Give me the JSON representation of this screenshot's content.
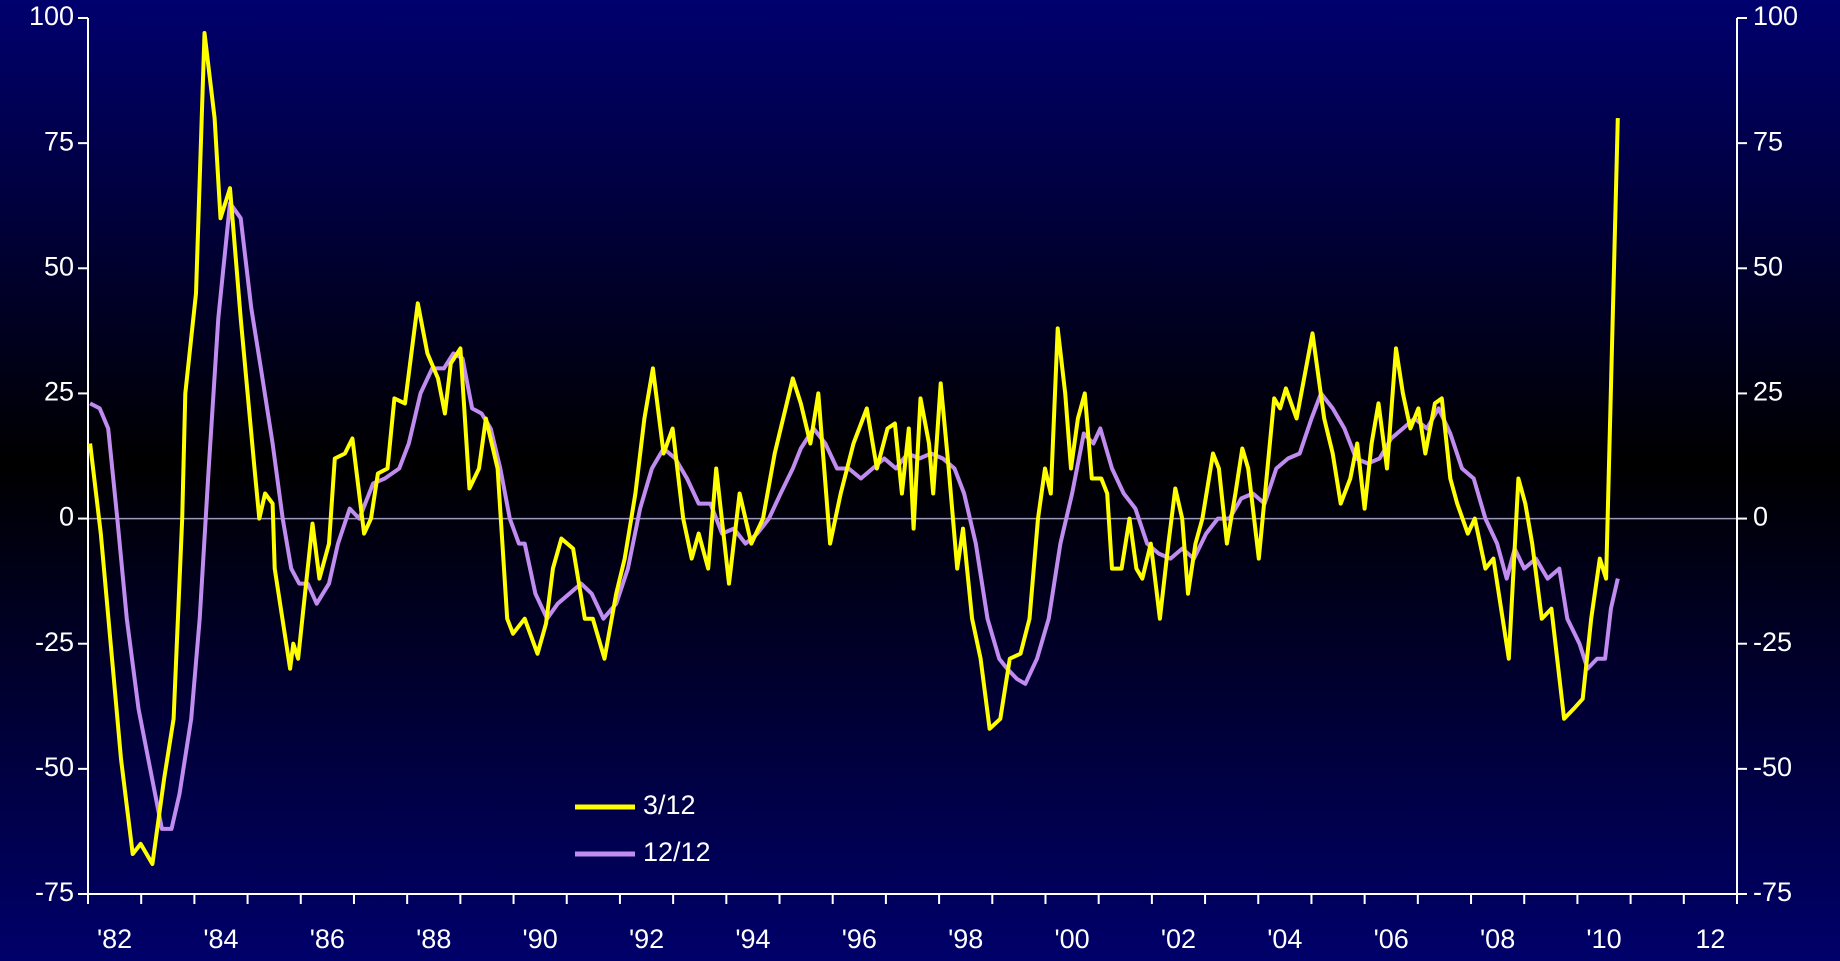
{
  "chart_data": {
    "type": "line",
    "xlim": [
      1982,
      2013
    ],
    "xticks": [
      {
        "value": 1982.5,
        "label": "'82"
      },
      {
        "value": 1984.5,
        "label": "'84"
      },
      {
        "value": 1986.5,
        "label": "'86"
      },
      {
        "value": 1988.5,
        "label": "'88"
      },
      {
        "value": 1990.5,
        "label": "'90"
      },
      {
        "value": 1992.5,
        "label": "'92"
      },
      {
        "value": 1994.5,
        "label": "'94"
      },
      {
        "value": 1996.5,
        "label": "'96"
      },
      {
        "value": 1998.5,
        "label": "'98"
      },
      {
        "value": 2000.5,
        "label": "'00"
      },
      {
        "value": 2002.5,
        "label": "'02"
      },
      {
        "value": 2004.5,
        "label": "'04"
      },
      {
        "value": 2006.5,
        "label": "'06"
      },
      {
        "value": 2008.5,
        "label": "'08"
      },
      {
        "value": 2010.5,
        "label": "'10"
      },
      {
        "value": 2012.5,
        "label": "12"
      }
    ],
    "xtick_marks": [
      1982,
      1983,
      1984,
      1985,
      1986,
      1987,
      1988,
      1989,
      1990,
      1991,
      1992,
      1993,
      1994,
      1995,
      1996,
      1997,
      1998,
      1999,
      2000,
      2001,
      2002,
      2003,
      2004,
      2005,
      2006,
      2007,
      2008,
      2009,
      2010,
      2011,
      2012,
      2013
    ],
    "ylim": [
      -75,
      100
    ],
    "yticks": [
      -75,
      -50,
      -25,
      0,
      25,
      50,
      75,
      100
    ],
    "y2lim": [
      -75,
      100
    ],
    "y2ticks": [
      -75,
      -50,
      -25,
      0,
      25,
      50,
      75,
      100
    ],
    "zero_line": true,
    "legend": "lower center",
    "series": [
      {
        "name": "3/12",
        "color": "#ffff00",
        "x": [
          1982.04,
          1982.24,
          1982.62,
          1982.84,
          1982.99,
          1983.21,
          1983.43,
          1983.61,
          1983.77,
          1983.83,
          1984.03,
          1984.19,
          1984.38,
          1984.49,
          1984.67,
          1984.87,
          1985.13,
          1985.22,
          1985.33,
          1985.47,
          1985.51,
          1985.8,
          1985.86,
          1985.95,
          1986.08,
          1986.22,
          1986.35,
          1986.53,
          1986.64,
          1986.83,
          1986.97,
          1987.19,
          1987.32,
          1987.45,
          1987.63,
          1987.76,
          1987.96,
          1988.2,
          1988.38,
          1988.58,
          1988.71,
          1988.82,
          1989.0,
          1989.17,
          1989.35,
          1989.48,
          1989.7,
          1989.88,
          1989.99,
          1990.21,
          1990.45,
          1990.61,
          1990.74,
          1990.9,
          1991.12,
          1991.34,
          1991.49,
          1991.71,
          1991.93,
          1992.09,
          1992.29,
          1992.46,
          1992.62,
          1992.82,
          1992.99,
          1993.19,
          1993.35,
          1993.48,
          1993.66,
          1993.81,
          1994.05,
          1994.25,
          1994.47,
          1994.69,
          1994.91,
          1995.25,
          1995.4,
          1995.58,
          1995.73,
          1995.95,
          1996.15,
          1996.39,
          1996.64,
          1996.83,
          1997.03,
          1997.17,
          1997.3,
          1997.43,
          1997.52,
          1997.65,
          1997.81,
          1997.89,
          1998.03,
          1998.18,
          1998.34,
          1998.45,
          1998.62,
          1998.78,
          1998.95,
          1999.15,
          1999.33,
          1999.53,
          1999.7,
          1999.86,
          1999.99,
          2000.1,
          2000.23,
          2000.37,
          2000.48,
          2000.61,
          2000.74,
          2000.87,
          2001.05,
          2001.16,
          2001.25,
          2001.43,
          2001.58,
          2001.71,
          2001.82,
          2001.98,
          2002.15,
          2002.31,
          2002.44,
          2002.57,
          2002.68,
          2002.82,
          2002.95,
          2003.15,
          2003.26,
          2003.41,
          2003.57,
          2003.7,
          2003.81,
          2004.01,
          2004.3,
          2004.41,
          2004.52,
          2004.72,
          2005.02,
          2005.24,
          2005.4,
          2005.55,
          2005.73,
          2005.86,
          2006.0,
          2006.13,
          2006.26,
          2006.42,
          2006.59,
          2006.72,
          2006.86,
          2007.01,
          2007.14,
          2007.32,
          2007.45,
          2007.61,
          2007.74,
          2007.94,
          2008.07,
          2008.27,
          2008.42,
          2008.71,
          2008.89,
          2009.02,
          2009.15,
          2009.33,
          2009.51,
          2009.75,
          2009.93,
          2010.1,
          2010.26,
          2010.42,
          2010.54,
          2010.76
        ],
        "values": [
          15,
          -3,
          -48,
          -67,
          -65,
          -69,
          -52,
          -40,
          0,
          25,
          45,
          97,
          80,
          60,
          66,
          40,
          10,
          0,
          5,
          3,
          -10,
          -30,
          -25,
          -28,
          -15,
          -1,
          -12,
          -5,
          12,
          13,
          16,
          -3,
          0,
          9,
          10,
          24,
          23,
          43,
          33,
          28,
          21,
          31,
          34,
          6,
          10,
          20,
          10,
          -20,
          -23,
          -20,
          -27,
          -21,
          -10,
          -4,
          -6,
          -20,
          -20,
          -28,
          -15,
          -8,
          5,
          20,
          30,
          13,
          18,
          0,
          -8,
          -3,
          -10,
          10,
          -13,
          5,
          -5,
          0,
          13,
          28,
          23,
          15,
          25,
          -5,
          5,
          15,
          22,
          10,
          18,
          19,
          5,
          18,
          -2,
          24,
          15,
          5,
          27,
          10,
          -10,
          -2,
          -20,
          -28,
          -42,
          -40,
          -28,
          -27,
          -20,
          0,
          10,
          5,
          38,
          25,
          10,
          20,
          25,
          8,
          8,
          5,
          -10,
          -10,
          0,
          -10,
          -12,
          -5,
          -20,
          -5,
          6,
          0,
          -15,
          -5,
          0,
          13,
          10,
          -5,
          5,
          14,
          10,
          -8,
          24,
          22,
          26,
          20,
          37,
          20,
          13,
          3,
          8,
          15,
          2,
          15,
          23,
          10,
          34,
          25,
          18,
          22,
          13,
          23,
          24,
          8,
          3,
          -3,
          0,
          -10,
          -8,
          -28,
          8,
          3,
          -5,
          -20,
          -18,
          -40,
          -38,
          -36,
          -20,
          -8,
          -12,
          80
        ]
      },
      {
        "name": "12/12",
        "color": "#c08cf0",
        "x": [
          1982.04,
          1982.22,
          1982.38,
          1982.55,
          1982.73,
          1982.95,
          1983.17,
          1983.39,
          1983.57,
          1983.72,
          1983.94,
          1984.1,
          1984.27,
          1984.45,
          1984.67,
          1984.87,
          1985.07,
          1985.25,
          1985.47,
          1985.66,
          1985.82,
          1985.97,
          1986.13,
          1986.3,
          1986.53,
          1986.7,
          1986.92,
          1987.1,
          1987.36,
          1987.58,
          1987.85,
          1988.03,
          1988.25,
          1988.47,
          1988.69,
          1988.87,
          1989.04,
          1989.22,
          1989.4,
          1989.57,
          1989.75,
          1989.93,
          1990.1,
          1990.21,
          1990.41,
          1990.63,
          1990.83,
          1991.05,
          1991.27,
          1991.47,
          1991.69,
          1991.93,
          1992.15,
          1992.38,
          1992.6,
          1992.82,
          1993.04,
          1993.26,
          1993.48,
          1993.7,
          1993.92,
          1994.14,
          1994.36,
          1994.58,
          1994.8,
          1995.02,
          1995.25,
          1995.4,
          1995.64,
          1995.86,
          1996.08,
          1996.3,
          1996.53,
          1996.75,
          1996.97,
          1997.19,
          1997.41,
          1997.63,
          1997.85,
          1998.07,
          1998.29,
          1998.47,
          1998.69,
          1998.91,
          1999.13,
          1999.28,
          1999.46,
          1999.62,
          1999.84,
          2000.06,
          2000.28,
          2000.5,
          2000.72,
          2000.9,
          2001.03,
          2001.25,
          2001.47,
          2001.69,
          2001.91,
          2002.13,
          2002.35,
          2002.57,
          2002.79,
          2003.02,
          2003.24,
          2003.46,
          2003.68,
          2003.9,
          2004.12,
          2004.34,
          2004.56,
          2004.78,
          2005.0,
          2005.18,
          2005.4,
          2005.62,
          2005.84,
          2006.06,
          2006.28,
          2006.5,
          2006.72,
          2006.94,
          2007.17,
          2007.39,
          2007.61,
          2007.83,
          2008.05,
          2008.27,
          2008.49,
          2008.67,
          2008.82,
          2009.0,
          2009.22,
          2009.44,
          2009.66,
          2009.81,
          2010.04,
          2010.19,
          2010.37,
          2010.52,
          2010.63,
          2010.76
        ],
        "values": [
          23,
          22,
          18,
          0,
          -20,
          -38,
          -50,
          -62,
          -62,
          -55,
          -40,
          -20,
          10,
          40,
          63,
          60,
          42,
          30,
          15,
          0,
          -10,
          -13,
          -13,
          -17,
          -13,
          -5,
          2,
          0,
          7,
          8,
          10,
          15,
          25,
          30,
          30,
          33,
          32,
          22,
          21,
          18,
          10,
          0,
          -5,
          -5,
          -15,
          -20,
          -17,
          -15,
          -13,
          -15,
          -20,
          -17,
          -10,
          2,
          10,
          14,
          12,
          8,
          3,
          3,
          -3,
          -2,
          -5,
          -3,
          0,
          5,
          10,
          14,
          18,
          15,
          10,
          10,
          8,
          10,
          12,
          10,
          13,
          12,
          13,
          12,
          10,
          5,
          -5,
          -20,
          -28,
          -30,
          -32,
          -33,
          -28,
          -20,
          -5,
          5,
          17,
          15,
          18,
          10,
          5,
          2,
          -5,
          -7,
          -8,
          -6,
          -8,
          -3,
          0,
          0,
          4,
          5,
          3,
          10,
          12,
          13,
          20,
          25,
          22,
          18,
          12,
          11,
          12,
          16,
          18,
          20,
          18,
          22,
          17,
          10,
          8,
          0,
          -5,
          -12,
          -6,
          -10,
          -8,
          -12,
          -10,
          -20,
          -25,
          -30,
          -28,
          -28,
          -18,
          -12
        ]
      }
    ]
  }
}
